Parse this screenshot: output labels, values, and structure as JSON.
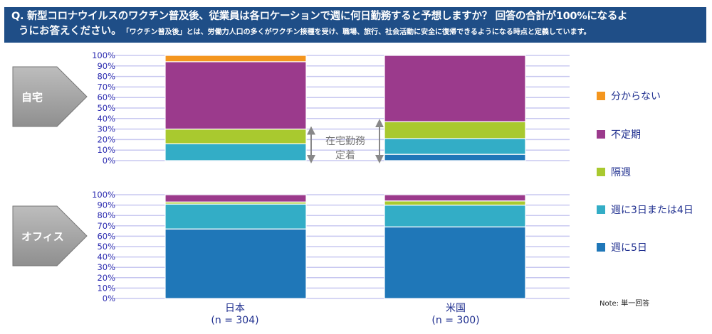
{
  "header": {
    "line1": "Q. 新型コロナウイルスのワクチン普及後、従業員は各ロケーションで週に何日勤務すると予想しますか？ 回答の合計が100%になるよ",
    "line2": "うにお答えください。",
    "line2_note": "「ワクチン普及後」とは、労働力人口の多くがワクチン接種を受け、職場、旅行、社会活動に安全に復帰できるようになる時点と定義しています。"
  },
  "chart_data": {
    "type": "bar",
    "stacked": true,
    "categories": [
      "日本",
      "米国"
    ],
    "category_sub": [
      "(n = 304)",
      "(n = 300)"
    ],
    "ylim": [
      0,
      100
    ],
    "yticks": [
      "0%",
      "10%",
      "20%",
      "30%",
      "40%",
      "50%",
      "60%",
      "70%",
      "80%",
      "90%",
      "100%"
    ],
    "legend_position": "right",
    "series_names": [
      "週に5日",
      "週に3日または4日",
      "隔週",
      "不定期",
      "分からない"
    ],
    "colors": [
      "#1F77B8",
      "#33ADC6",
      "#A9C92F",
      "#9B3A8C",
      "#F4961E"
    ],
    "panels": [
      {
        "label": "自宅",
        "values": [
          [
            0,
            16,
            14,
            64,
            6
          ],
          [
            6,
            15,
            16,
            63,
            0
          ]
        ],
        "annotation": [
          "在宅勤務",
          "定着"
        ]
      },
      {
        "label": "オフィス",
        "values": [
          [
            67,
            24,
            2,
            7,
            0
          ],
          [
            69,
            21,
            4,
            6,
            0
          ]
        ]
      }
    ]
  },
  "legend_order": [
    4,
    3,
    2,
    1,
    0
  ],
  "note": "Note: 単一回答"
}
